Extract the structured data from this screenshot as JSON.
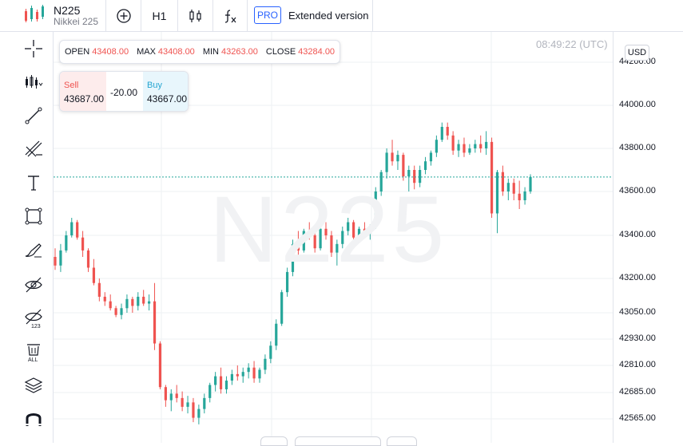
{
  "symbol": {
    "name": "N225",
    "subtitle": "Nikkei 225"
  },
  "toolbar": {
    "add_icon": "plus-circle-icon",
    "timeframe": "H1",
    "indicators_icon": "candles-icon",
    "fx_icon": "function-icon",
    "pro_badge": "PRO",
    "extended_label": "Extended version"
  },
  "left_tools": [
    {
      "name": "crosshair-icon"
    },
    {
      "name": "chart-type-icon"
    },
    {
      "name": "trend-line-icon"
    },
    {
      "name": "fib-tools-icon"
    },
    {
      "name": "text-icon"
    },
    {
      "name": "shapes-icon"
    },
    {
      "name": "brush-icon"
    },
    {
      "name": "hide-drawings-icon"
    },
    {
      "name": "hide-indicators-icon"
    },
    {
      "name": "delete-all-icon"
    },
    {
      "name": "layers-icon"
    },
    {
      "name": "magnet-icon"
    }
  ],
  "ohlc": {
    "open_label": "OPEN",
    "open": "43408.00",
    "max_label": "MAX",
    "max": "43408.00",
    "min_label": "MIN",
    "min": "43263.00",
    "close_label": "CLOSE",
    "close": "43284.00"
  },
  "trade": {
    "sell_label": "Sell",
    "sell_price": "43687.00",
    "spread": "-20.00",
    "buy_label": "Buy",
    "buy_price": "43667.00"
  },
  "clock": "08:49:22 (UTC)",
  "currency": "USD",
  "watermark": "N225",
  "colors": {
    "up": "#26a69a",
    "down": "#ef5350",
    "current_price_line": "#26a69a",
    "accent": "#2962ff"
  },
  "chart_data": {
    "type": "candlestick",
    "y_ticks": [
      "44200.00",
      "44000.00",
      "43800.00",
      "43600.00",
      "43400.00",
      "43200.00",
      "43050.00",
      "42930.00",
      "42810.00",
      "42685.00",
      "42565.00"
    ],
    "current_price": 43667,
    "ohlc": [
      [
        43300,
        43340,
        43240,
        43260
      ],
      [
        43260,
        43360,
        43230,
        43330
      ],
      [
        43330,
        43420,
        43320,
        43400
      ],
      [
        43400,
        43480,
        43390,
        43460
      ],
      [
        43460,
        43470,
        43380,
        43390
      ],
      [
        43390,
        43420,
        43300,
        43330
      ],
      [
        43330,
        43340,
        43230,
        43250
      ],
      [
        43250,
        43290,
        43170,
        43180
      ],
      [
        43180,
        43200,
        43100,
        43120
      ],
      [
        43120,
        43140,
        43080,
        43100
      ],
      [
        43100,
        43130,
        43060,
        43070
      ],
      [
        43070,
        43080,
        43030,
        43040
      ],
      [
        43040,
        43090,
        43020,
        43070
      ],
      [
        43070,
        43130,
        43050,
        43110
      ],
      [
        43110,
        43120,
        43050,
        43080
      ],
      [
        43080,
        43140,
        43060,
        43120
      ],
      [
        43120,
        43150,
        43080,
        43090
      ],
      [
        43090,
        43130,
        43060,
        43100
      ],
      [
        43100,
        43180,
        42880,
        42910
      ],
      [
        42910,
        42920,
        42700,
        42710
      ],
      [
        42710,
        42720,
        42620,
        42650
      ],
      [
        42650,
        42700,
        42600,
        42680
      ],
      [
        42680,
        42720,
        42640,
        42660
      ],
      [
        42660,
        42690,
        42600,
        42620
      ],
      [
        42620,
        42670,
        42590,
        42640
      ],
      [
        42640,
        42660,
        42550,
        42570
      ],
      [
        42570,
        42630,
        42540,
        42610
      ],
      [
        42610,
        42680,
        42590,
        42660
      ],
      [
        42660,
        42730,
        42640,
        42720
      ],
      [
        42720,
        42780,
        42690,
        42760
      ],
      [
        42760,
        42800,
        42680,
        42700
      ],
      [
        42700,
        42760,
        42680,
        42740
      ],
      [
        42740,
        42790,
        42720,
        42770
      ],
      [
        42770,
        42810,
        42740,
        42760
      ],
      [
        42760,
        42800,
        42730,
        42780
      ],
      [
        42780,
        42820,
        42750,
        42800
      ],
      [
        42800,
        42830,
        42730,
        42750
      ],
      [
        42750,
        42800,
        42730,
        42790
      ],
      [
        42790,
        42860,
        42770,
        42840
      ],
      [
        42840,
        42920,
        42820,
        42900
      ],
      [
        42900,
        43020,
        42880,
        43000
      ],
      [
        43000,
        43150,
        42990,
        43140
      ],
      [
        43140,
        43250,
        43120,
        43230
      ],
      [
        43230,
        43380,
        43210,
        43360
      ],
      [
        43360,
        43420,
        43300,
        43330
      ],
      [
        43330,
        43430,
        43320,
        43420
      ],
      [
        43420,
        43460,
        43380,
        43400
      ],
      [
        43400,
        43420,
        43320,
        43340
      ],
      [
        43340,
        43440,
        43330,
        43430
      ],
      [
        43430,
        43460,
        43380,
        43400
      ],
      [
        43400,
        43420,
        43300,
        43320
      ],
      [
        43320,
        43380,
        43260,
        43360
      ],
      [
        43360,
        43440,
        43340,
        43420
      ],
      [
        43420,
        43480,
        43400,
        43460
      ],
      [
        43460,
        43470,
        43380,
        43390
      ],
      [
        43390,
        43440,
        43370,
        43430
      ],
      [
        43430,
        43460,
        43390,
        43410
      ],
      [
        43410,
        43450,
        43380,
        43440
      ],
      [
        43440,
        43620,
        43430,
        43600
      ],
      [
        43600,
        43700,
        43580,
        43690
      ],
      [
        43690,
        43800,
        43660,
        43780
      ],
      [
        43780,
        43840,
        43720,
        43740
      ],
      [
        43740,
        43790,
        43700,
        43770
      ],
      [
        43770,
        43780,
        43650,
        43670
      ],
      [
        43670,
        43720,
        43600,
        43700
      ],
      [
        43700,
        43720,
        43610,
        43640
      ],
      [
        43640,
        43720,
        43620,
        43700
      ],
      [
        43700,
        43760,
        43680,
        43740
      ],
      [
        43740,
        43790,
        43720,
        43780
      ],
      [
        43780,
        43860,
        43760,
        43840
      ],
      [
        43840,
        43920,
        43830,
        43900
      ],
      [
        43900,
        43920,
        43840,
        43860
      ],
      [
        43860,
        43880,
        43770,
        43790
      ],
      [
        43790,
        43840,
        43760,
        43820
      ],
      [
        43820,
        43850,
        43760,
        43780
      ],
      [
        43780,
        43820,
        43770,
        43800
      ],
      [
        43800,
        43840,
        43780,
        43820
      ],
      [
        43820,
        43860,
        43780,
        43800
      ],
      [
        43800,
        43880,
        43770,
        43830
      ],
      [
        43830,
        43850,
        43480,
        43500
      ],
      [
        43500,
        43700,
        43410,
        43690
      ],
      [
        43690,
        43720,
        43580,
        43600
      ],
      [
        43600,
        43660,
        43560,
        43640
      ],
      [
        43640,
        43660,
        43560,
        43590
      ],
      [
        43590,
        43650,
        43520,
        43560
      ],
      [
        43560,
        43620,
        43540,
        43600
      ],
      [
        43600,
        43680,
        43590,
        43667
      ]
    ]
  }
}
